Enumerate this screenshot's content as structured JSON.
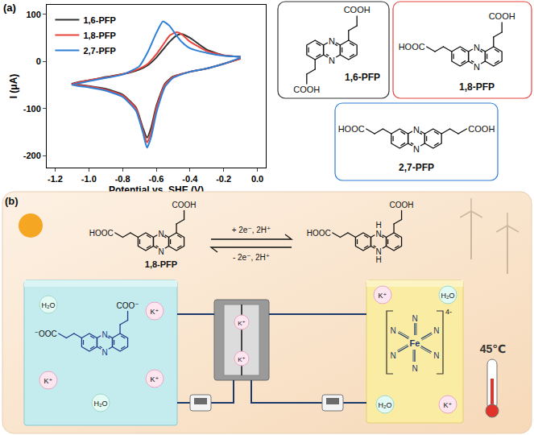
{
  "chart_data": {
    "type": "line",
    "panel_label": "(a)",
    "x_label": "Potential vs. SHE (V)",
    "y_label": "I (μA)",
    "xlim": [
      -1.25,
      0.05
    ],
    "xticks": [
      -1.2,
      {
        "value": -1,
        "label": "-1.0"
      },
      -0.8,
      -0.6,
      -0.4,
      -0.2,
      {
        "value": 0,
        "label": "0.0"
      }
    ],
    "ylim": [
      -225,
      120
    ],
    "yticks": [
      -200,
      -100,
      0,
      100
    ],
    "grid": false,
    "legend": "upper left",
    "series": [
      {
        "name": "1,6-PFP",
        "color": "#333333",
        "x": [
          -0.1,
          -0.2,
          -0.3,
          -0.4,
          -0.5,
          -0.55,
          -0.6,
          -0.63,
          -0.655,
          -0.68,
          -0.72,
          -0.8,
          -0.9,
          -1.0,
          -1.1,
          -1.0,
          -0.9,
          -0.8,
          -0.7,
          -0.65,
          -0.6,
          -0.56,
          -0.52,
          -0.48,
          -0.45,
          -0.4,
          -0.3,
          -0.2,
          -0.1
        ],
        "values": [
          6,
          -5,
          -15,
          -22,
          -32,
          -48,
          -95,
          -140,
          -162,
          -140,
          -98,
          -70,
          -58,
          -52,
          -47,
          -40,
          -33,
          -27,
          -17,
          -8,
          8,
          25,
          42,
          55,
          58,
          50,
          25,
          13,
          10
        ]
      },
      {
        "name": "1,8-PFP",
        "color": "#e8453c",
        "x": [
          -0.1,
          -0.2,
          -0.3,
          -0.4,
          -0.5,
          -0.55,
          -0.6,
          -0.63,
          -0.655,
          -0.68,
          -0.72,
          -0.8,
          -0.9,
          -1.0,
          -1.1,
          -1.0,
          -0.9,
          -0.8,
          -0.7,
          -0.65,
          -0.6,
          -0.56,
          -0.52,
          -0.48,
          -0.45,
          -0.4,
          -0.3,
          -0.2,
          -0.1
        ],
        "values": [
          6,
          -5,
          -15,
          -22,
          -33,
          -50,
          -100,
          -150,
          -172,
          -145,
          -100,
          -72,
          -60,
          -53,
          -48,
          -40,
          -34,
          -27,
          -15,
          -5,
          15,
          35,
          55,
          62,
          58,
          42,
          22,
          13,
          10
        ]
      },
      {
        "name": "2,7-PFP",
        "color": "#2f7fd6",
        "x": [
          -0.1,
          -0.2,
          -0.3,
          -0.4,
          -0.5,
          -0.55,
          -0.6,
          -0.63,
          -0.655,
          -0.68,
          -0.72,
          -0.8,
          -0.9,
          -1.0,
          -1.1,
          -1.0,
          -0.9,
          -0.8,
          -0.7,
          -0.65,
          -0.6,
          -0.56,
          -0.52,
          -0.48,
          -0.45,
          -0.4,
          -0.3,
          -0.2,
          -0.1
        ],
        "values": [
          8,
          -5,
          -15,
          -22,
          -35,
          -55,
          -110,
          -160,
          -183,
          -150,
          -105,
          -75,
          -62,
          -55,
          -50,
          -42,
          -35,
          -28,
          -10,
          20,
          60,
          85,
          75,
          55,
          42,
          28,
          18,
          12,
          10
        ]
      }
    ]
  },
  "structures": {
    "ring_atom": "N",
    "items": [
      {
        "name": "1,6-PFP",
        "groups": [
          "COOH",
          "COOH"
        ]
      },
      {
        "name": "1,8-PFP",
        "groups": [
          "HOOC",
          "COOH"
        ]
      },
      {
        "name": "2,7-PFP",
        "groups": [
          "HOOC",
          "COOH"
        ]
      }
    ]
  },
  "scheme": {
    "panel_label": "(b)",
    "oxidized": {
      "name": "1,8-PFP",
      "groups": [
        "HOOC",
        "COOH"
      ]
    },
    "forward": "+ 2e⁻, 2H⁺",
    "backward": "- 2e⁻, 2H⁺",
    "reduced": {
      "groups": [
        "HOOC",
        "COOH"
      ],
      "nh": "H"
    },
    "negolyte": {
      "groups": [
        "⁻OOC",
        "COO⁻"
      ],
      "ions": [
        "K⁺",
        "K⁺",
        "K⁺"
      ],
      "water": [
        "H₂O",
        "H₂O"
      ]
    },
    "membrane_ions": [
      "K⁺",
      "K⁺"
    ],
    "posolyte": {
      "center": "Fe",
      "ligand": "N",
      "charge": "4-",
      "ions": [
        "K⁺",
        "K⁺"
      ],
      "water": [
        "H₂O",
        "H₂O"
      ]
    },
    "temperature": "45℃"
  }
}
